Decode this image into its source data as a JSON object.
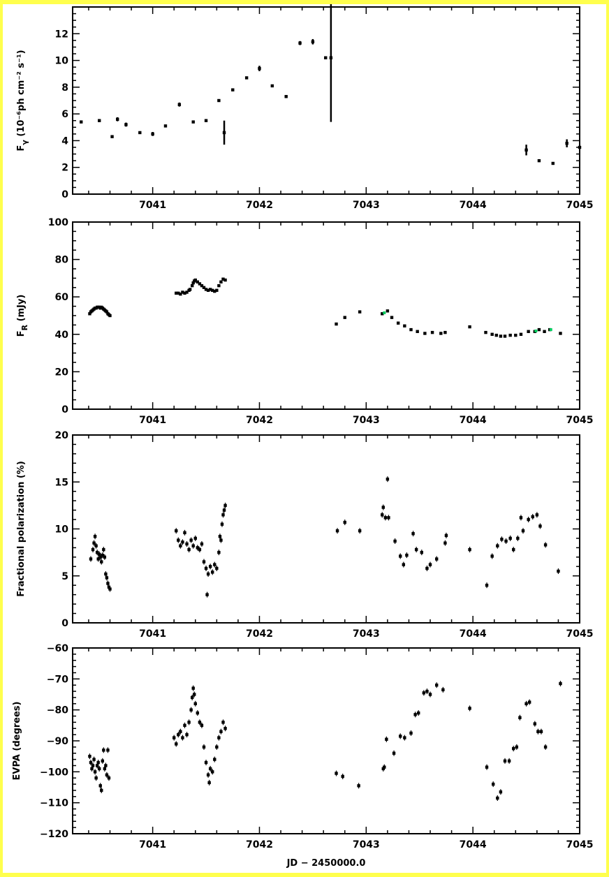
{
  "colors": {
    "background": "#ffff4d",
    "panel": "#ffffff",
    "ink": "#000000",
    "highlight": "#00d060"
  },
  "chart_data": [
    {
      "type": "scatter",
      "ylabel": "F_γ (10⁻⁶ph cm⁻² s⁻¹)",
      "xlabel": "",
      "xlim": [
        7040.25,
        7045.0
      ],
      "ylim": [
        0,
        14
      ],
      "xticks": [
        "7041",
        "7042",
        "7043",
        "7044",
        "7045"
      ],
      "yticks": [
        "0",
        "2",
        "4",
        "6",
        "8",
        "10",
        "12"
      ],
      "points": [
        [
          7040.33,
          5.4,
          0.1
        ],
        [
          7040.5,
          5.5,
          0.1
        ],
        [
          7040.62,
          4.3,
          0.1
        ],
        [
          7040.67,
          5.6,
          0.15
        ],
        [
          7040.75,
          5.2,
          0.15
        ],
        [
          7040.88,
          4.6,
          0.1
        ],
        [
          7041.0,
          4.5,
          0.15
        ],
        [
          7041.12,
          5.1,
          0.1
        ],
        [
          7041.25,
          6.7,
          0.15
        ],
        [
          7041.38,
          5.4,
          0.1
        ],
        [
          7041.5,
          5.5,
          0.1
        ],
        [
          7041.62,
          7.0,
          0.1
        ],
        [
          7041.67,
          4.6,
          0.9
        ],
        [
          7041.75,
          7.8,
          0.1
        ],
        [
          7041.88,
          8.7,
          0.1
        ],
        [
          7042.0,
          9.4,
          0.2
        ],
        [
          7042.12,
          8.1,
          0.1
        ],
        [
          7042.25,
          7.3,
          0.1
        ],
        [
          7042.38,
          11.3,
          0.15
        ],
        [
          7042.5,
          11.4,
          0.2
        ],
        [
          7042.62,
          10.2,
          0.1
        ],
        [
          7042.67,
          10.2,
          4.8
        ],
        [
          7044.5,
          3.3,
          0.4
        ],
        [
          7044.62,
          2.5,
          0.1
        ],
        [
          7044.75,
          2.3,
          0.1
        ],
        [
          7044.88,
          3.8,
          0.3
        ],
        [
          7045.0,
          3.5,
          0.1
        ]
      ]
    },
    {
      "type": "scatter",
      "ylabel": "F_R (mJy)",
      "xlabel": "",
      "xlim": [
        7040.25,
        7045.0
      ],
      "ylim": [
        0,
        100
      ],
      "xticks": [
        "7041",
        "7042",
        "7043",
        "7044",
        "7045"
      ],
      "yticks": [
        "0",
        "20",
        "40",
        "60",
        "80",
        "100"
      ],
      "points": [
        [
          7040.41,
          51.0
        ],
        [
          7040.42,
          52.0
        ],
        [
          7040.43,
          52.5
        ],
        [
          7040.44,
          53.0
        ],
        [
          7040.45,
          53.5
        ],
        [
          7040.46,
          54.0
        ],
        [
          7040.47,
          54.0
        ],
        [
          7040.48,
          54.5
        ],
        [
          7040.49,
          54.5
        ],
        [
          7040.5,
          54.5
        ],
        [
          7040.51,
          54.0
        ],
        [
          7040.52,
          54.5
        ],
        [
          7040.53,
          54.0
        ],
        [
          7040.54,
          53.5
        ],
        [
          7040.55,
          53.0
        ],
        [
          7040.56,
          52.5
        ],
        [
          7040.57,
          52.0
        ],
        [
          7040.58,
          51.0
        ],
        [
          7040.59,
          50.5
        ],
        [
          7040.6,
          50.0
        ],
        [
          7041.22,
          62.0
        ],
        [
          7041.24,
          62.0
        ],
        [
          7041.26,
          61.5
        ],
        [
          7041.28,
          62.5
        ],
        [
          7041.3,
          62.0
        ],
        [
          7041.32,
          62.5
        ],
        [
          7041.34,
          63.5
        ],
        [
          7041.35,
          64.0
        ],
        [
          7041.37,
          66.0
        ],
        [
          7041.38,
          67.5
        ],
        [
          7041.39,
          68.5
        ],
        [
          7041.4,
          69.0
        ],
        [
          7041.42,
          68.0
        ],
        [
          7041.44,
          67.0
        ],
        [
          7041.46,
          66.0
        ],
        [
          7041.48,
          65.0
        ],
        [
          7041.5,
          64.0
        ],
        [
          7041.52,
          63.5
        ],
        [
          7041.54,
          64.0
        ],
        [
          7041.56,
          63.5
        ],
        [
          7041.58,
          63.0
        ],
        [
          7041.6,
          63.5
        ],
        [
          7041.62,
          66.0
        ],
        [
          7041.64,
          68.0
        ],
        [
          7041.66,
          69.5
        ],
        [
          7041.68,
          69.0
        ],
        [
          7042.72,
          45.5
        ],
        [
          7042.8,
          49.0
        ],
        [
          7042.94,
          52.0
        ],
        [
          7043.15,
          51.0
        ],
        [
          7043.2,
          52.5
        ],
        [
          7043.24,
          49.0
        ],
        [
          7043.3,
          46.0
        ],
        [
          7043.36,
          44.5
        ],
        [
          7043.42,
          42.5
        ],
        [
          7043.48,
          41.5
        ],
        [
          7043.55,
          40.5
        ],
        [
          7043.62,
          41.0
        ],
        [
          7043.7,
          40.5
        ],
        [
          7043.74,
          41.0
        ],
        [
          7043.97,
          44.0
        ],
        [
          7044.12,
          41.0
        ],
        [
          7044.18,
          40.0
        ],
        [
          7044.22,
          39.5
        ],
        [
          7044.26,
          39.0
        ],
        [
          7044.3,
          39.0
        ],
        [
          7044.35,
          39.5
        ],
        [
          7044.4,
          39.5
        ],
        [
          7044.45,
          40.0
        ],
        [
          7044.52,
          41.5
        ],
        [
          7044.58,
          41.5
        ],
        [
          7044.62,
          42.5
        ],
        [
          7044.67,
          41.5
        ],
        [
          7044.72,
          42.5
        ],
        [
          7044.82,
          40.5
        ]
      ]
    },
    {
      "type": "scatter",
      "ylabel": "Fractional polarization (%)",
      "xlabel": "",
      "xlim": [
        7040.25,
        7045.0
      ],
      "ylim": [
        0,
        20
      ],
      "xticks": [
        "7041",
        "7042",
        "7043",
        "7044",
        "7045"
      ],
      "yticks": [
        "0",
        "5",
        "10",
        "15",
        "20"
      ],
      "points": [
        [
          7040.42,
          6.8
        ],
        [
          7040.44,
          7.8
        ],
        [
          7040.45,
          8.5
        ],
        [
          7040.46,
          9.2
        ],
        [
          7040.47,
          8.2
        ],
        [
          7040.48,
          7.5
        ],
        [
          7040.49,
          6.8
        ],
        [
          7040.5,
          7.3
        ],
        [
          7040.51,
          7.0
        ],
        [
          7040.52,
          6.5
        ],
        [
          7040.53,
          7.2
        ],
        [
          7040.54,
          7.8
        ],
        [
          7040.55,
          7.0
        ],
        [
          7040.56,
          5.2
        ],
        [
          7040.57,
          4.8
        ],
        [
          7040.58,
          4.2
        ],
        [
          7040.59,
          3.8
        ],
        [
          7040.6,
          3.6
        ],
        [
          7041.22,
          9.8
        ],
        [
          7041.24,
          8.8
        ],
        [
          7041.26,
          8.2
        ],
        [
          7041.28,
          8.6
        ],
        [
          7041.3,
          9.6
        ],
        [
          7041.32,
          8.4
        ],
        [
          7041.34,
          7.8
        ],
        [
          7041.36,
          8.8
        ],
        [
          7041.38,
          8.2
        ],
        [
          7041.4,
          9.0
        ],
        [
          7041.42,
          8.0
        ],
        [
          7041.44,
          7.8
        ],
        [
          7041.46,
          8.4
        ],
        [
          7041.48,
          6.5
        ],
        [
          7041.5,
          5.8
        ],
        [
          7041.51,
          3.0
        ],
        [
          7041.52,
          5.2
        ],
        [
          7041.54,
          6.0
        ],
        [
          7041.56,
          5.4
        ],
        [
          7041.58,
          6.2
        ],
        [
          7041.6,
          5.8
        ],
        [
          7041.62,
          7.5
        ],
        [
          7041.63,
          9.2
        ],
        [
          7041.64,
          8.8
        ],
        [
          7041.65,
          10.5
        ],
        [
          7041.66,
          11.5
        ],
        [
          7041.67,
          12.0
        ],
        [
          7041.68,
          12.5
        ],
        [
          7042.73,
          9.8
        ],
        [
          7042.8,
          10.7
        ],
        [
          7042.94,
          9.8
        ],
        [
          7043.15,
          11.5
        ],
        [
          7043.16,
          12.3
        ],
        [
          7043.18,
          11.2
        ],
        [
          7043.2,
          15.3
        ],
        [
          7043.21,
          11.2
        ],
        [
          7043.27,
          8.7
        ],
        [
          7043.32,
          7.1
        ],
        [
          7043.35,
          6.2
        ],
        [
          7043.38,
          7.2
        ],
        [
          7043.44,
          9.5
        ],
        [
          7043.47,
          7.8
        ],
        [
          7043.52,
          7.5
        ],
        [
          7043.57,
          5.8
        ],
        [
          7043.6,
          6.2
        ],
        [
          7043.66,
          6.8
        ],
        [
          7043.74,
          8.5
        ],
        [
          7043.75,
          9.3
        ],
        [
          7043.97,
          7.8
        ],
        [
          7044.13,
          4.0
        ],
        [
          7044.18,
          7.1
        ],
        [
          7044.23,
          8.2
        ],
        [
          7044.27,
          8.9
        ],
        [
          7044.31,
          8.7
        ],
        [
          7044.35,
          9.0
        ],
        [
          7044.38,
          7.8
        ],
        [
          7044.42,
          9.0
        ],
        [
          7044.45,
          11.2
        ],
        [
          7044.47,
          9.8
        ],
        [
          7044.52,
          11.0
        ],
        [
          7044.56,
          11.3
        ],
        [
          7044.6,
          11.5
        ],
        [
          7044.63,
          10.3
        ],
        [
          7044.68,
          8.3
        ],
        [
          7044.8,
          5.5
        ]
      ]
    },
    {
      "type": "scatter",
      "ylabel": "EVPA (degrees)",
      "xlabel": "JD − 2450000.0",
      "xlim": [
        7040.25,
        7045.0
      ],
      "ylim": [
        -120,
        -60
      ],
      "xticks": [
        "7041",
        "7042",
        "7043",
        "7044",
        "7045"
      ],
      "yticks": [
        "−120",
        "−110",
        "−100",
        "−90",
        "−80",
        "−70",
        "−60"
      ],
      "points": [
        [
          7040.41,
          -95.0
        ],
        [
          7040.42,
          -97.0
        ],
        [
          7040.43,
          -99.0
        ],
        [
          7040.44,
          -98.0
        ],
        [
          7040.45,
          -96.0
        ],
        [
          7040.46,
          -100.0
        ],
        [
          7040.47,
          -102.0
        ],
        [
          7040.48,
          -98.0
        ],
        [
          7040.49,
          -97.0
        ],
        [
          7040.5,
          -99.0
        ],
        [
          7040.51,
          -104.5
        ],
        [
          7040.52,
          -106.0
        ],
        [
          7040.53,
          -96.5
        ],
        [
          7040.54,
          -93.0
        ],
        [
          7040.55,
          -99.0
        ],
        [
          7040.56,
          -98.0
        ],
        [
          7040.57,
          -101.0
        ],
        [
          7040.58,
          -93.0
        ],
        [
          7040.59,
          -102.0
        ],
        [
          7041.2,
          -89.0
        ],
        [
          7041.22,
          -91.0
        ],
        [
          7041.24,
          -88.0
        ],
        [
          7041.26,
          -87.0
        ],
        [
          7041.28,
          -89.0
        ],
        [
          7041.3,
          -85.0
        ],
        [
          7041.32,
          -88.0
        ],
        [
          7041.34,
          -84.0
        ],
        [
          7041.36,
          -80.0
        ],
        [
          7041.37,
          -76.0
        ],
        [
          7041.38,
          -73.0
        ],
        [
          7041.39,
          -75.0
        ],
        [
          7041.4,
          -78.0
        ],
        [
          7041.42,
          -81.0
        ],
        [
          7041.44,
          -84.0
        ],
        [
          7041.46,
          -85.0
        ],
        [
          7041.48,
          -92.0
        ],
        [
          7041.5,
          -97.0
        ],
        [
          7041.52,
          -101.0
        ],
        [
          7041.53,
          -103.5
        ],
        [
          7041.54,
          -99.0
        ],
        [
          7041.56,
          -100.0
        ],
        [
          7041.58,
          -96.0
        ],
        [
          7041.6,
          -92.0
        ],
        [
          7041.62,
          -89.0
        ],
        [
          7041.64,
          -87.0
        ],
        [
          7041.66,
          -84.0
        ],
        [
          7041.68,
          -86.0
        ],
        [
          7042.72,
          -100.5
        ],
        [
          7042.78,
          -101.5
        ],
        [
          7042.93,
          -104.5
        ],
        [
          7043.16,
          -99.0
        ],
        [
          7043.17,
          -98.5
        ],
        [
          7043.19,
          -89.5
        ],
        [
          7043.26,
          -94.0
        ],
        [
          7043.32,
          -88.5
        ],
        [
          7043.36,
          -89.0
        ],
        [
          7043.42,
          -87.5
        ],
        [
          7043.46,
          -81.5
        ],
        [
          7043.49,
          -81.0
        ],
        [
          7043.54,
          -74.5
        ],
        [
          7043.57,
          -74.0
        ],
        [
          7043.6,
          -75.0
        ],
        [
          7043.66,
          -72.0
        ],
        [
          7043.72,
          -73.5
        ],
        [
          7043.97,
          -79.5
        ],
        [
          7044.13,
          -98.5
        ],
        [
          7044.19,
          -104.0
        ],
        [
          7044.23,
          -108.5
        ],
        [
          7044.26,
          -106.5
        ],
        [
          7044.3,
          -96.5
        ],
        [
          7044.34,
          -96.5
        ],
        [
          7044.38,
          -92.5
        ],
        [
          7044.41,
          -92.0
        ],
        [
          7044.44,
          -82.5
        ],
        [
          7044.5,
          -78.0
        ],
        [
          7044.53,
          -77.5
        ],
        [
          7044.58,
          -84.5
        ],
        [
          7044.61,
          -87.0
        ],
        [
          7044.64,
          -87.0
        ],
        [
          7044.68,
          -92.0
        ],
        [
          7044.82,
          -71.5
        ]
      ]
    }
  ],
  "green_points": [
    {
      "panel": 1,
      "x": 7043.17,
      "y": 51.5
    },
    {
      "panel": 1,
      "x": 7044.59,
      "y": 41.8
    },
    {
      "panel": 1,
      "x": 7044.73,
      "y": 42.5
    }
  ]
}
